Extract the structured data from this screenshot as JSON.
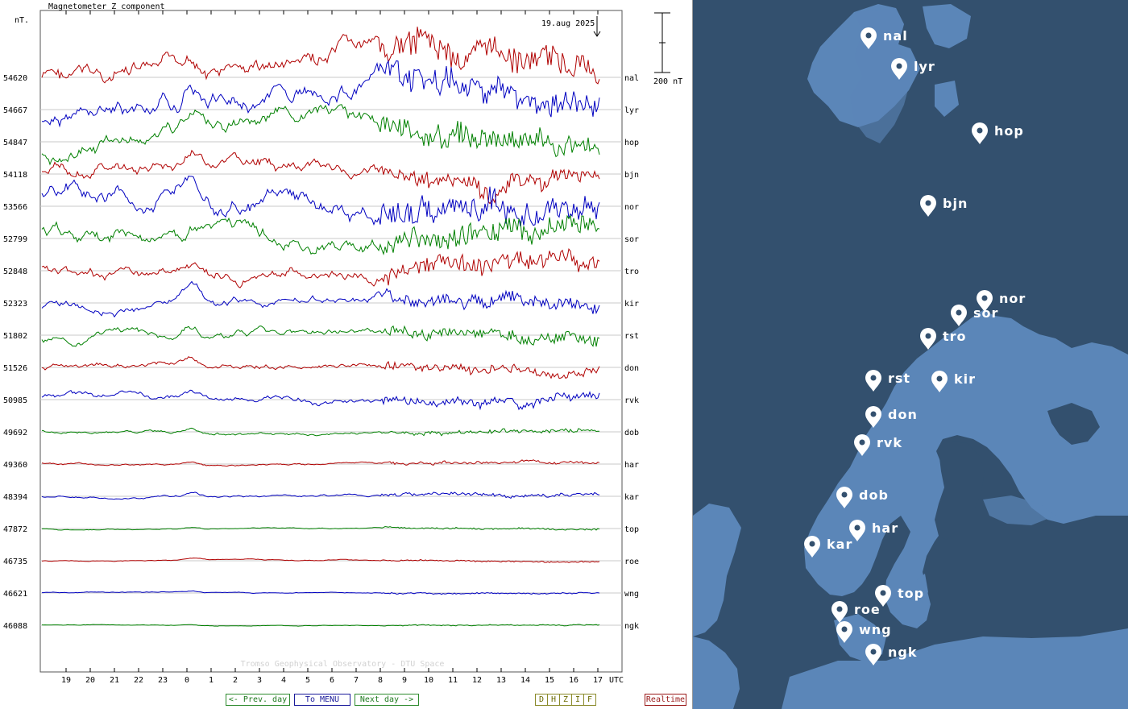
{
  "chart_data": {
    "type": "line",
    "title": "Magnetometer Z component",
    "unit_label": "nT.",
    "date_label": "19.aug 2025",
    "scale_label": "200 nT",
    "watermark": "Tromso Geophysical Observatory - DTU Space",
    "x_unit": "UTC",
    "x_ticks": [
      "19",
      "20",
      "21",
      "22",
      "23",
      "0",
      "1",
      "2",
      "3",
      "4",
      "5",
      "6",
      "7",
      "8",
      "9",
      "10",
      "11",
      "12",
      "13",
      "14",
      "15",
      "16",
      "17"
    ],
    "grid": "horizontal baselines",
    "stations": [
      {
        "code": "nal",
        "baseline": "54620",
        "color": "#b00000",
        "activity": 1.0
      },
      {
        "code": "lyr",
        "baseline": "54667",
        "color": "#0000c0",
        "activity": 0.95
      },
      {
        "code": "hop",
        "baseline": "54847",
        "color": "#008000",
        "activity": 0.8
      },
      {
        "code": "bjn",
        "baseline": "54118",
        "color": "#b00000",
        "activity": 0.7
      },
      {
        "code": "nor",
        "baseline": "53566",
        "color": "#0000c0",
        "activity": 0.9
      },
      {
        "code": "sor",
        "baseline": "52799",
        "color": "#008000",
        "activity": 0.8
      },
      {
        "code": "tro",
        "baseline": "52848",
        "color": "#b00000",
        "activity": 0.6
      },
      {
        "code": "kir",
        "baseline": "52323",
        "color": "#0000c0",
        "activity": 0.45
      },
      {
        "code": "rst",
        "baseline": "51802",
        "color": "#008000",
        "activity": 0.4
      },
      {
        "code": "don",
        "baseline": "51526",
        "color": "#b00000",
        "activity": 0.3
      },
      {
        "code": "rvk",
        "baseline": "50985",
        "color": "#0000c0",
        "activity": 0.3
      },
      {
        "code": "dob",
        "baseline": "49692",
        "color": "#008000",
        "activity": 0.15
      },
      {
        "code": "har",
        "baseline": "49360",
        "color": "#b00000",
        "activity": 0.1
      },
      {
        "code": "kar",
        "baseline": "48394",
        "color": "#0000c0",
        "activity": 0.12
      },
      {
        "code": "top",
        "baseline": "47872",
        "color": "#008000",
        "activity": 0.06
      },
      {
        "code": "roe",
        "baseline": "46735",
        "color": "#b00000",
        "activity": 0.05
      },
      {
        "code": "wng",
        "baseline": "46621",
        "color": "#0000c0",
        "activity": 0.05
      },
      {
        "code": "ngk",
        "baseline": "46088",
        "color": "#008000",
        "activity": 0.04
      }
    ]
  },
  "buttons": {
    "prev": "<- Prev. day",
    "menu": "To MENU",
    "next": "Next day ->",
    "components": [
      "D",
      "H",
      "Z",
      "I",
      "F"
    ],
    "realtime": "Realtime"
  },
  "map": {
    "stations": [
      "nal",
      "lyr",
      "hop",
      "bjn",
      "nor",
      "sor",
      "tro",
      "rst",
      "kir",
      "don",
      "rvk",
      "dob",
      "har",
      "kar",
      "top",
      "roe",
      "wng",
      "ngk"
    ]
  }
}
